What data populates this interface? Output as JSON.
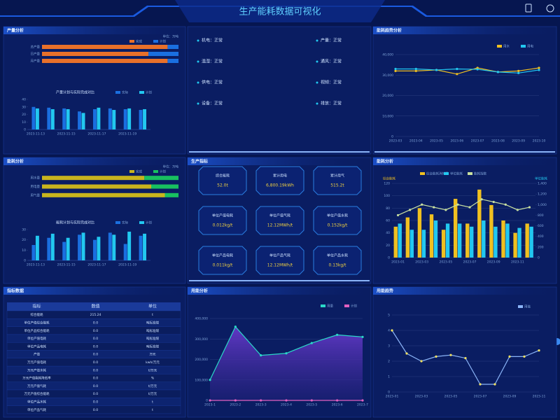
{
  "header": {
    "title": "生产能耗数据可视化"
  },
  "panels": [
    "产量分析",
    "能耗趋势分析",
    "能耗分析",
    "生产指标",
    "能耗分析",
    "指标数据",
    "用能分析",
    "用能趋势"
  ],
  "status": [
    "机电：正常",
    "温湿：正常",
    "供电：正常",
    "设备：正常",
    "产量：正常",
    "通风：正常",
    "视频：正常",
    "排放：正常"
  ],
  "cards": [
    {
      "title": "综合能耗",
      "value": "52.0t"
    },
    {
      "title": "累计用电",
      "value": "6,800.19kWh"
    },
    {
      "title": "累计用气",
      "value": "515.2t"
    },
    {
      "title": "单位产值电耗",
      "value": "0.012kg/t"
    },
    {
      "title": "单位产值气耗",
      "value": "12.12MWh/t"
    },
    {
      "title": "单位产值水耗",
      "value": "0.152kg/t"
    },
    {
      "title": "单位产品电耗",
      "value": "0.011kg/t"
    },
    {
      "title": "单位产品气耗",
      "value": "12.12MWh/t"
    },
    {
      "title": "单位产品水耗",
      "value": "0.13kg/t"
    }
  ],
  "table": {
    "header": [
      "指标",
      "数值",
      "单位"
    ],
    "rows": [
      [
        "综合能耗",
        "215.24",
        "t"
      ],
      [
        "单位产值综合能耗",
        "0.0",
        "吨标准煤"
      ],
      [
        "单位产品综合能耗",
        "0.0",
        "吨标准煤"
      ],
      [
        "单位产值电耗",
        "0.0",
        "吨标准煤"
      ],
      [
        "单位产品电耗",
        "0.0",
        "吨标准煤"
      ],
      [
        "产值",
        "0.0",
        "万元"
      ],
      [
        "万元产值电耗",
        "0.0",
        "kwh/万元"
      ],
      [
        "万元产值水耗",
        "0.0",
        "t/万元"
      ],
      [
        "万元产值能耗降低率",
        "0.0",
        "%"
      ],
      [
        "万元产值气耗",
        "0.0",
        "t/万元"
      ],
      [
        "万元产值综合能耗",
        "0.0",
        "t/万元"
      ],
      [
        "单位产品水耗",
        "0.0",
        "t"
      ],
      [
        "单位产品气耗",
        "0.0",
        "t"
      ]
    ]
  },
  "chart_data": [
    {
      "type": "progress",
      "unit": "单位：万吨",
      "categories": [
        "总产量",
        "日产量",
        "月产量"
      ],
      "xlim": [
        0,
        100
      ],
      "series": [
        {
          "name": "完成",
          "color": "#e8702a",
          "values": [
            92,
            78,
            92
          ]
        },
        {
          "name": "计划",
          "color": "#1a6fe0",
          "values": [
            8,
            22,
            8
          ]
        }
      ]
    },
    {
      "type": "bar",
      "title": "产量计划与实际完成对比",
      "categories": [
        "2023-11-13",
        null,
        "2023-11-15",
        null,
        "2023-11-17",
        null,
        "2023-11-19",
        null
      ],
      "ylim": [
        0,
        40
      ],
      "yticks": [
        0,
        10,
        20,
        30,
        40
      ],
      "series": [
        {
          "name": "实际",
          "color": "#1a6fe0",
          "values": [
            30,
            29,
            28,
            24,
            27,
            28,
            27,
            26
          ]
        },
        {
          "name": "计划",
          "color": "#22c8f0",
          "values": [
            28,
            27,
            27,
            22,
            29,
            26,
            28,
            27
          ]
        }
      ]
    },
    {
      "type": "line",
      "categories": [
        "2023-03",
        "2023-04",
        "2023-05",
        "2023-06",
        "2023-07",
        "2023-08",
        "2023-09",
        "2023-10"
      ],
      "ylim": [
        0,
        40000
      ],
      "yticks": [
        0,
        {
          "value": 10000,
          "label": "10,000"
        },
        {
          "value": 20000,
          "label": "20,000"
        },
        {
          "value": 30000,
          "label": "30,000"
        },
        {
          "value": 40000,
          "label": "40,000"
        }
      ],
      "series": [
        {
          "name": "用水",
          "color": "#f0c020",
          "values": [
            32000,
            32000,
            32500,
            30500,
            33500,
            31500,
            32000,
            33500
          ]
        },
        {
          "name": "用电",
          "color": "#22c8f0",
          "values": [
            33000,
            33000,
            32500,
            33000,
            32800,
            31500,
            31000,
            32500
          ]
        }
      ]
    },
    {
      "type": "progress",
      "unit": "单位：万吨",
      "categories": [
        "用水量",
        "用电量",
        "用气量"
      ],
      "xlim": [
        0,
        100
      ],
      "series": [
        {
          "name": "完成",
          "color": "#c8b41e",
          "values": [
            75,
            80,
            90
          ]
        },
        {
          "name": "计划",
          "color": "#18c060",
          "values": [
            25,
            20,
            10
          ]
        }
      ]
    },
    {
      "type": "bar",
      "title": "能耗计划与实际完成对比",
      "categories": [
        "2023-11-13",
        null,
        "2023-11-15",
        null,
        "2023-11-17",
        null,
        "2023-11-19",
        null
      ],
      "ylim": [
        0,
        30
      ],
      "yticks": [
        0,
        10,
        20,
        30
      ],
      "series": [
        {
          "name": "实际",
          "color": "#1a6fe0",
          "values": [
            15,
            22,
            18,
            25,
            20,
            27,
            16,
            24
          ]
        },
        {
          "name": "计划",
          "color": "#22c8f0",
          "values": [
            24,
            26,
            22,
            27,
            23,
            25,
            28,
            26
          ]
        }
      ]
    },
    {
      "type": "combo",
      "y_label": "综合能耗",
      "y2_label": "单位能耗",
      "categories": [
        "2023-01",
        null,
        "2023-03",
        null,
        "2023-05",
        null,
        "2023-07",
        null,
        "2023-09",
        null,
        "2023-11",
        null
      ],
      "ylim": [
        0,
        120
      ],
      "yticks": [
        0,
        20,
        40,
        60,
        80,
        100,
        120
      ],
      "y2lim": [
        0,
        1400
      ],
      "y2ticks": [
        0,
        200,
        400,
        600,
        800,
        {
          "value": 1000,
          "label": "1,000"
        },
        {
          "value": 1200,
          "label": "1,200"
        },
        {
          "value": 1400,
          "label": "1,400"
        }
      ],
      "series": [
        {
          "name": "综合能耗消耗量",
          "color": "#f0c020",
          "values": [
            50,
            65,
            80,
            70,
            45,
            95,
            55,
            110,
            85,
            60,
            40,
            55
          ]
        },
        {
          "name": "单位能耗",
          "color": "#22c8f0",
          "values": [
            55,
            45,
            45,
            60,
            55,
            55,
            50,
            60,
            50,
            55,
            48,
            50
          ]
        },
        {
          "name": "能耗指数",
          "color": "#c8e0a0",
          "axis": "y2",
          "values": [
            800,
            900,
            1000,
            950,
            900,
            1000,
            950,
            1100,
            1050,
            1000,
            900,
            950
          ]
        }
      ]
    },
    {
      "type": "area",
      "categories": [
        "2023-1",
        "2023-2",
        "2023-3",
        "2023-4",
        "2023-5",
        "2023-6",
        "2023-7"
      ],
      "ylim": [
        0,
        400000
      ],
      "yticks": [
        0,
        {
          "value": 100000,
          "label": "100,000"
        },
        {
          "value": 200000,
          "label": "200,000"
        },
        {
          "value": 300000,
          "label": "300,000"
        },
        {
          "value": 400000,
          "label": "400,000"
        }
      ],
      "series": [
        {
          "name": "用量",
          "color": "#2ad8c8",
          "values": [
            100000,
            360000,
            220000,
            230000,
            280000,
            320000,
            310000
          ]
        },
        {
          "name": "计划",
          "color": "#e060c0",
          "values": [
            0,
            0,
            0,
            0,
            0,
            0,
            0
          ]
        }
      ]
    },
    {
      "type": "line",
      "categories": [
        "2023-01",
        null,
        "2023-03",
        null,
        "2023-05",
        null,
        "2023-07",
        null,
        "2023-09",
        null,
        "2023-11"
      ],
      "ylim": [
        0,
        5
      ],
      "yticks": [
        0,
        1,
        2,
        3,
        4,
        5
      ],
      "series": [
        {
          "name": "用能",
          "color": "#8ab4f8",
          "values": [
            4.0,
            2.5,
            2.0,
            2.3,
            2.4,
            2.2,
            0.5,
            0.5,
            2.3,
            2.3,
            2.7
          ]
        }
      ]
    }
  ]
}
